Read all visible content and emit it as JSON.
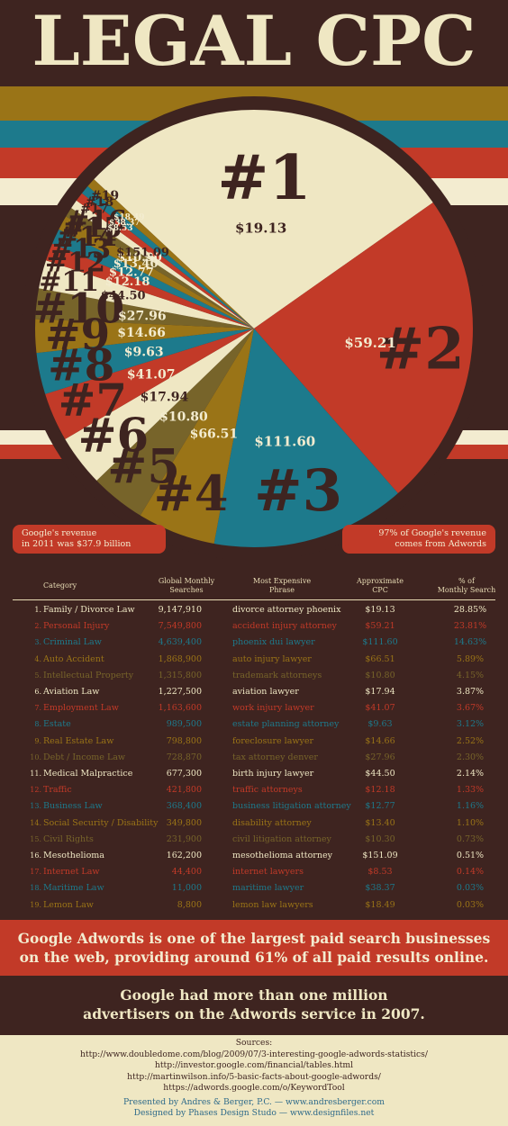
{
  "title": "LEGAL CPC",
  "colors": {
    "background": "#3e2420",
    "red": "#c23a28",
    "cream": "#efe7c3",
    "teal": "#1d7a8c",
    "mustard": "#9a7417",
    "olive": "#77642a",
    "text_cream": "#f3ecd0"
  },
  "callouts": {
    "left": [
      "Google's revenue",
      "in 2011 was $37.9 billion"
    ],
    "right": [
      "97% of Google's revenue",
      "comes from Adwords"
    ]
  },
  "chart_data": {
    "type": "pie",
    "title": "LEGAL CPC",
    "slices": [
      {
        "rank": "#1",
        "value": 28.85,
        "cpc": "$19.13",
        "color": "#efe7c3"
      },
      {
        "rank": "#2",
        "value": 23.81,
        "cpc": "$59.21",
        "color": "#c23a28"
      },
      {
        "rank": "#3",
        "value": 14.63,
        "cpc": "$111.60",
        "color": "#1d7a8c"
      },
      {
        "rank": "#4",
        "value": 5.89,
        "cpc": "$66.51",
        "color": "#9a7417"
      },
      {
        "rank": "#5",
        "value": 4.15,
        "cpc": "$10.80",
        "color": "#77642a"
      },
      {
        "rank": "#6",
        "value": 3.87,
        "cpc": "$17.94",
        "color": "#efe7c3"
      },
      {
        "rank": "#7",
        "value": 3.67,
        "cpc": "$41.07",
        "color": "#c23a28"
      },
      {
        "rank": "#8",
        "value": 3.12,
        "cpc": "$9.63",
        "color": "#1d7a8c"
      },
      {
        "rank": "#9",
        "value": 2.52,
        "cpc": "$14.66",
        "color": "#9a7417"
      },
      {
        "rank": "#10",
        "value": 2.3,
        "cpc": "$27.96",
        "color": "#77642a"
      },
      {
        "rank": "#11",
        "value": 2.14,
        "cpc": "$44.50",
        "color": "#efe7c3"
      },
      {
        "rank": "#12",
        "value": 1.33,
        "cpc": "$12.18",
        "color": "#c23a28"
      },
      {
        "rank": "#13",
        "value": 1.16,
        "cpc": "$12.77",
        "color": "#1d7a8c"
      },
      {
        "rank": "#14",
        "value": 1.1,
        "cpc": "$13.40",
        "color": "#9a7417"
      },
      {
        "rank": "#15",
        "value": 0.73,
        "cpc": "$10.30",
        "color": "#77642a"
      },
      {
        "rank": "#16",
        "value": 0.51,
        "cpc": "$151.09",
        "color": "#efe7c3"
      },
      {
        "rank": "#17",
        "value": 0.14,
        "cpc": "$8.53",
        "color": "#c23a28"
      },
      {
        "rank": "#18",
        "value": 0.03,
        "cpc": "$38.37",
        "color": "#1d7a8c"
      },
      {
        "rank": "#19",
        "value": 0.03,
        "cpc": "$18.49",
        "color": "#9a7417"
      }
    ]
  },
  "table": {
    "headers": {
      "category": "Category",
      "searches": [
        "Global Monthly",
        "Searches"
      ],
      "phrase": [
        "Most Expensive",
        "Phrase"
      ],
      "cpc": [
        "Approximate",
        "CPC"
      ],
      "pct": [
        "% of",
        "Monthly Search"
      ]
    },
    "row_colors": [
      "#efe7c3",
      "#c23a28",
      "#1d7a8c",
      "#9a7417",
      "#77642a"
    ],
    "rows": [
      {
        "num": "1.",
        "category": "Family / Divorce Law",
        "searches": "9,147,910",
        "phrase": "divorce attorney phoenix",
        "cpc": "$19.13",
        "pct": "28.85%"
      },
      {
        "num": "2.",
        "category": "Personal Injury",
        "searches": "7,549,800",
        "phrase": "accident injury attorney",
        "cpc": "$59.21",
        "pct": "23.81%"
      },
      {
        "num": "3.",
        "category": "Criminal Law",
        "searches": "4,639,400",
        "phrase": "phoenix dui lawyer",
        "cpc": "$111.60",
        "pct": "14.63%"
      },
      {
        "num": "4.",
        "category": "Auto Accident",
        "searches": "1,868,900",
        "phrase": "auto injury lawyer",
        "cpc": "$66.51",
        "pct": "5.89%"
      },
      {
        "num": "5.",
        "category": "Intellectual Property",
        "searches": "1,315,800",
        "phrase": "trademark attorneys",
        "cpc": "$10.80",
        "pct": "4.15%"
      },
      {
        "num": "6.",
        "category": "Aviation Law",
        "searches": "1,227,500",
        "phrase": "aviation lawyer",
        "cpc": "$17.94",
        "pct": "3.87%"
      },
      {
        "num": "7.",
        "category": "Employment Law",
        "searches": "1,163,600",
        "phrase": "work injury lawyer",
        "cpc": "$41.07",
        "pct": "3.67%"
      },
      {
        "num": "8.",
        "category": "Estate",
        "searches": "989,500",
        "phrase": "estate planning attorney",
        "cpc": "$9.63",
        "pct": "3.12%"
      },
      {
        "num": "9.",
        "category": "Real Estate Law",
        "searches": "798,800",
        "phrase": "foreclosure lawyer",
        "cpc": "$14.66",
        "pct": "2.52%"
      },
      {
        "num": "10.",
        "category": "Debt / Income Law",
        "searches": "728,870",
        "phrase": "tax attorney denver",
        "cpc": "$27.96",
        "pct": "2.30%"
      },
      {
        "num": "11.",
        "category": "Medical Malpractice",
        "searches": "677,300",
        "phrase": "birth injury lawyer",
        "cpc": "$44.50",
        "pct": "2.14%"
      },
      {
        "num": "12.",
        "category": "Traffic",
        "searches": "421,800",
        "phrase": "traffic attorneys",
        "cpc": "$12.18",
        "pct": "1.33%"
      },
      {
        "num": "13.",
        "category": "Business Law",
        "searches": "368,400",
        "phrase": "business litigation attorney",
        "cpc": "$12.77",
        "pct": "1.16%"
      },
      {
        "num": "14.",
        "category": "Social Security / Disability",
        "searches": "349,800",
        "phrase": "disability attorney",
        "cpc": "$13.40",
        "pct": "1.10%"
      },
      {
        "num": "15.",
        "category": "Civil Rights",
        "searches": "231,900",
        "phrase": "civil litigation attorney",
        "cpc": "$10.30",
        "pct": "0.73%"
      },
      {
        "num": "16.",
        "category": "Mesothelioma",
        "searches": "162,200",
        "phrase": "mesothelioma attorney",
        "cpc": "$151.09",
        "pct": "0.51%"
      },
      {
        "num": "17.",
        "category": "Internet Law",
        "searches": "44,400",
        "phrase": "internet lawyers",
        "cpc": "$8.53",
        "pct": "0.14%"
      },
      {
        "num": "18.",
        "category": "Maritime Law",
        "searches": "11,000",
        "phrase": "maritime lawyer",
        "cpc": "$38.37",
        "pct": "0.03%"
      },
      {
        "num": "19.",
        "category": "Lemon Law",
        "searches": "8,800",
        "phrase": "lemon law lawyers",
        "cpc": "$18.49",
        "pct": "0.03%"
      }
    ]
  },
  "banner_red": [
    "Google Adwords is one of the largest paid search businesses",
    "on the web, providing around 61% of all paid results online."
  ],
  "banner_brown": [
    "Google had more than one million",
    "advertisers on the Adwords service in 2007."
  ],
  "sources": {
    "heading": "Sources:",
    "links": [
      "http://www.doubledome.com/blog/2009/07/3-interesting-google-adwords-statistics/",
      "http://investor.google.com/financial/tables.html",
      "http://martinwilson.info/5-basic-facts-about-google-adwords/",
      "https://adwords.google.com/o/KeywordTool"
    ],
    "credits": [
      "Presented by Andres & Berger, P.C. — www.andresberger.com",
      "Designed by Phases Design Studo — www.designfiles.net"
    ]
  }
}
